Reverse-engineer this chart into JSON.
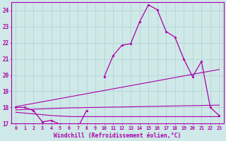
{
  "background_color": "#cfe8e8",
  "grid_color": "#b0d0d0",
  "line_color": "#aa00aa",
  "hours": [
    0,
    1,
    2,
    3,
    4,
    5,
    6,
    7,
    8,
    9,
    10,
    11,
    12,
    13,
    14,
    15,
    16,
    17,
    18,
    19,
    20,
    21,
    22,
    23
  ],
  "temp_main": [
    18.0,
    18.0,
    17.8,
    17.1,
    17.2,
    16.95,
    16.95,
    16.75,
    17.8,
    null,
    19.9,
    21.2,
    21.85,
    21.95,
    23.3,
    24.35,
    24.05,
    22.7,
    22.35,
    21.0,
    19.9,
    20.85,
    18.0,
    17.5
  ],
  "line_upper": [
    18.05,
    18.15,
    18.25,
    18.35,
    18.45,
    18.55,
    18.65,
    18.75,
    18.85,
    18.95,
    19.05,
    19.15,
    19.25,
    19.35,
    19.45,
    19.55,
    19.65,
    19.75,
    19.85,
    19.95,
    20.05,
    20.15,
    20.25,
    20.35
  ],
  "line_mid": [
    17.85,
    17.87,
    17.89,
    17.91,
    17.93,
    17.95,
    17.97,
    17.98,
    17.99,
    18.0,
    18.01,
    18.02,
    18.03,
    18.04,
    18.05,
    18.06,
    18.07,
    18.08,
    18.09,
    18.1,
    18.11,
    18.12,
    18.13,
    18.14
  ],
  "line_lower": [
    17.7,
    17.65,
    17.6,
    17.55,
    17.5,
    17.47,
    17.44,
    17.43,
    17.43,
    17.43,
    17.43,
    17.43,
    17.43,
    17.43,
    17.43,
    17.43,
    17.43,
    17.43,
    17.43,
    17.43,
    17.43,
    17.43,
    17.43,
    17.43
  ],
  "ylim_min": 17.0,
  "ylim_max": 24.5,
  "yticks": [
    17,
    18,
    19,
    20,
    21,
    22,
    23,
    24
  ],
  "xtick_labels": [
    "0",
    "1",
    "2",
    "3",
    "4",
    "5",
    "6",
    "7",
    "8",
    "9",
    "10",
    "11",
    "12",
    "13",
    "14",
    "15",
    "16",
    "17",
    "18",
    "19",
    "20",
    "21",
    "22",
    "23"
  ]
}
